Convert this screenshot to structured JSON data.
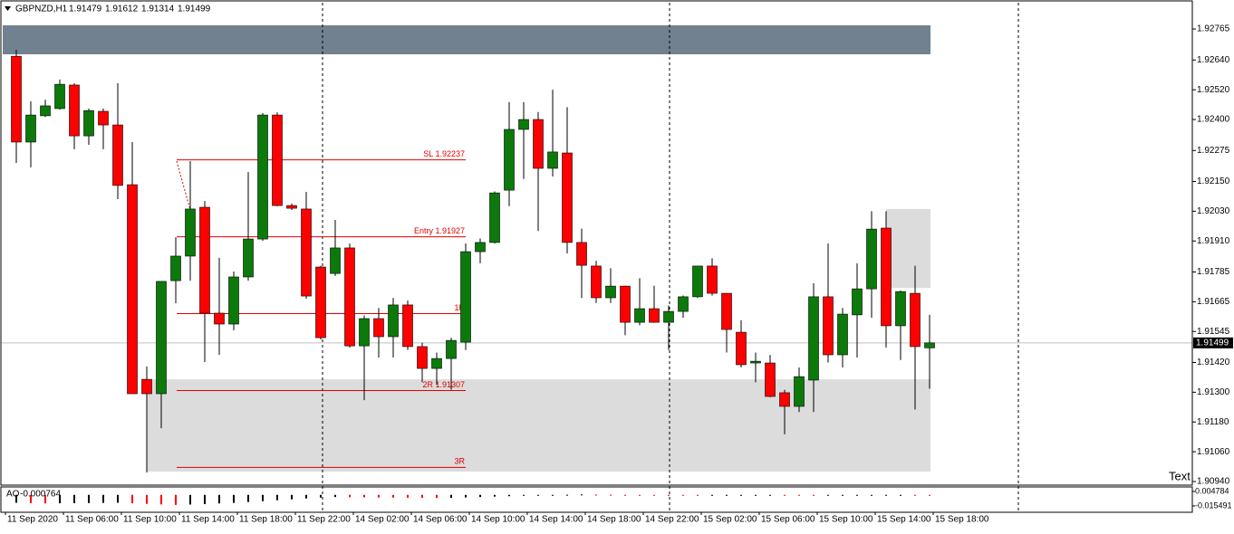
{
  "chart_data": {
    "type": "candlestick",
    "title": "GBPNZD,H1",
    "up_color": "#0b7a0b",
    "down_color": "#ff0000",
    "open": [
      1.92655,
      1.92309,
      1.92415,
      1.92444,
      1.92539,
      1.92334,
      1.92433,
      1.92378,
      1.92137,
      1.91352,
      1.91294,
      1.9175,
      1.91849,
      1.92046,
      1.91619,
      1.91575,
      1.91765,
      1.91918,
      1.92418,
      1.92053,
      1.92039,
      1.91805,
      1.91779,
      1.91882,
      1.91487,
      1.91597,
      1.91524,
      1.91652,
      1.91484,
      1.91396,
      1.91436,
      1.91502,
      1.91867,
      1.91904,
      1.92115,
      1.9236,
      1.924,
      1.92203,
      1.92265,
      1.91904,
      1.91809,
      1.91681,
      1.91728,
      1.91582,
      1.91637,
      1.91582,
      1.91626,
      1.91685,
      1.91809,
      1.91699,
      1.91542,
      1.91418,
      1.91418,
      1.91298,
      1.91243,
      1.91349,
      1.91685,
      1.91451,
      1.91612,
      1.91717,
      1.91962,
      1.91568,
      1.91699,
      1.91479
    ],
    "high": [
      1.92681,
      1.92473,
      1.9248,
      1.92561,
      1.92546,
      1.92444,
      1.92444,
      1.92546,
      1.92309,
      1.91404,
      1.91747,
      1.91925,
      1.92232,
      1.92071,
      1.91842,
      1.91787,
      1.92188,
      1.92426,
      1.92429,
      1.92061,
      1.92108,
      1.9181,
      1.91995,
      1.919,
      1.9161,
      1.9164,
      1.9168,
      1.9167,
      1.915,
      1.9146,
      1.9152,
      1.919,
      1.9192,
      1.9211,
      1.9247,
      1.9247,
      1.9243,
      1.9252,
      1.9245,
      1.9196,
      1.9183,
      1.918,
      1.9173,
      1.9176,
      1.9173,
      1.9165,
      1.9169,
      1.9181,
      1.9184,
      1.917,
      1.9159,
      1.9146,
      1.9145,
      1.9131,
      1.914,
      1.9174,
      1.919,
      1.9164,
      1.9182,
      1.9203,
      1.9203,
      1.9171,
      1.9181,
      1.91612
    ],
    "low": [
      1.92225,
      1.92207,
      1.9241,
      1.9244,
      1.9228,
      1.92298,
      1.9228,
      1.92079,
      1.91294,
      1.90976,
      1.91155,
      1.91659,
      1.9175,
      1.91422,
      1.91451,
      1.9155,
      1.9175,
      1.91911,
      1.9205,
      1.92035,
      1.91677,
      1.91513,
      1.91769,
      1.9148,
      1.91268,
      1.9144,
      1.9144,
      1.9147,
      1.9134,
      1.9133,
      1.9131,
      1.9147,
      1.9182,
      1.919,
      1.9205,
      1.9216,
      1.9195,
      1.9217,
      1.9186,
      1.9168,
      1.9166,
      1.9166,
      1.9153,
      1.9157,
      1.9158,
      1.9147,
      1.916,
      1.9168,
      1.9169,
      1.9146,
      1.914,
      1.9134,
      1.9128,
      1.9113,
      1.9122,
      1.9122,
      1.9142,
      1.914,
      1.9144,
      1.916,
      1.9148,
      1.9143,
      1.9123,
      1.91314
    ],
    "close": [
      1.92309,
      1.92418,
      1.92455,
      1.92542,
      1.92334,
      1.92436,
      1.92378,
      1.92134,
      1.91294,
      1.91294,
      1.91747,
      1.91849,
      1.92039,
      1.91619,
      1.91575,
      1.91765,
      1.91918,
      1.92418,
      1.92053,
      1.92042,
      1.91688,
      1.9152,
      1.91882,
      1.91487,
      1.91597,
      1.91524,
      1.91652,
      1.91484,
      1.91396,
      1.91436,
      1.91509,
      1.91867,
      1.91904,
      1.92104,
      1.9236,
      1.924,
      1.92203,
      1.92269,
      1.91904,
      1.91812,
      1.91681,
      1.91728,
      1.91582,
      1.91637,
      1.91582,
      1.91626,
      1.91685,
      1.91809,
      1.91699,
      1.91553,
      1.91411,
      1.91425,
      1.91283,
      1.91243,
      1.91363,
      1.91685,
      1.91451,
      1.91615,
      1.91717,
      1.91958,
      1.91568,
      1.91706,
      1.91484,
      1.91499
    ],
    "ylim": [
      1.90929,
      1.92871
    ],
    "yticks": [
      1.92765,
      {
        "value": 1.9264,
        "label": "1.92640"
      },
      {
        "value": 1.9252,
        "label": "1.92520"
      },
      {
        "value": 1.924,
        "label": "1.92400"
      },
      1.92275,
      {
        "value": 1.9215,
        "label": "1.92150"
      },
      {
        "value": 1.9203,
        "label": "1.92030"
      },
      {
        "value": 1.9191,
        "label": "1.91910"
      },
      1.91785,
      1.91665,
      1.91545,
      {
        "value": 1.9142,
        "label": "1.91420"
      },
      {
        "value": 1.913,
        "label": "1.91300"
      },
      {
        "value": 1.9118,
        "label": "1.91180"
      },
      {
        "value": 1.9106,
        "label": "1.91060"
      },
      {
        "value": 1.9094,
        "label": "1.90940"
      }
    ],
    "x_labels": [
      "11 Sep 2020",
      "11 Sep 06:00",
      "11 Sep 10:00",
      "11 Sep 14:00",
      "11 Sep 18:00",
      "11 Sep 22:00",
      "14 Sep 02:00",
      "14 Sep 06:00",
      "14 Sep 10:00",
      "14 Sep 14:00",
      "14 Sep 18:00",
      "14 Sep 22:00",
      "15 Sep 02:00",
      "15 Sep 06:00",
      "15 Sep 10:00",
      "15 Sep 14:00",
      "15 Sep 18:00"
    ],
    "levels": [
      {
        "label": "SL 1.92237",
        "value": 1.92237
      },
      {
        "label": "Entry 1.91927",
        "value": 1.91927
      },
      {
        "label": "1R",
        "value": 1.91617
      },
      {
        "label": "2R 1.91307",
        "value": 1.91307
      },
      {
        "label": "3R",
        "value": 1.90997
      }
    ],
    "level_color": "#e00000",
    "zones": [
      {
        "from": 1.9278,
        "to": 1.92663,
        "color": "#718190"
      },
      {
        "from": 1.91352,
        "to": 1.9098,
        "color": "#dcdcdc"
      },
      {
        "from": 1.92039,
        "to": 1.91721,
        "color": "#dcdcdc"
      }
    ],
    "annotation": "Text",
    "indicator": {
      "name": "AO",
      "up_color": "#000000",
      "down_color": "#ff0000",
      "ylim": [
        -0.015491,
        0.004784
      ],
      "yticks": [
        0.004784,
        -0.015491
      ],
      "values": [
        -0.011,
        -0.0115,
        -0.012,
        -0.0118,
        -0.0116,
        -0.0114,
        -0.0112,
        -0.011,
        -0.0118,
        -0.0126,
        -0.0134,
        -0.014,
        -0.0135,
        -0.0128,
        -0.012,
        -0.0112,
        -0.01,
        -0.0088,
        -0.0075,
        -0.0062,
        -0.005,
        -0.0038,
        -0.003,
        -0.0032,
        -0.0034,
        -0.0036,
        -0.0038,
        -0.004,
        -0.0042,
        -0.0043,
        -0.0041,
        -0.0036,
        -0.003,
        -0.0024,
        -0.0018,
        -0.0012,
        -0.0006,
        -0.0002,
        0.0002,
        0.0006,
        0.0004,
        0.0002,
        0,
        -0.0002,
        -0.0004,
        -0.0006,
        -0.0008,
        -0.001,
        -0.0008,
        -0.0006,
        -0.0005,
        -0.0004,
        -0.0003,
        -0.0005,
        -0.0008,
        -0.001,
        -0.0009,
        -0.0008,
        -0.0007,
        -0.0006,
        -0.0005,
        -0.0004,
        -0.0006,
        -0.000764
      ]
    }
  }
}
